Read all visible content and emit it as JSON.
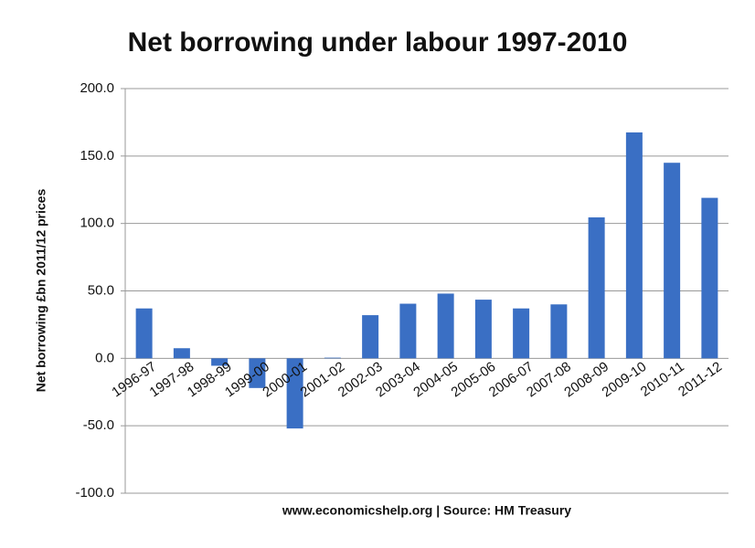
{
  "chart_data": {
    "type": "bar",
    "title": "Net borrowing under labour 1997-2010",
    "y_label": "Net borrowing £bn 2011/12 prices",
    "x_label": "www.economicshelp.org | Source: HM Treasury",
    "categories": [
      "1996-97",
      "1997-98",
      "1998-99",
      "1999-00",
      "2000-01",
      "2001-02",
      "2002-03",
      "2003-04",
      "2004-05",
      "2005-06",
      "2006-07",
      "2007-08",
      "2008-09",
      "2009-10",
      "2010-11",
      "2011-12"
    ],
    "values": [
      37,
      7.5,
      -5.5,
      -22,
      -52,
      0.5,
      32,
      40.5,
      48,
      43.5,
      37,
      40,
      104.5,
      167.5,
      145,
      119
    ],
    "color": "#3a6fc4",
    "ylim": [
      -100,
      200
    ],
    "yticks": [
      {
        "value": -100,
        "label": "-100.0"
      },
      {
        "value": -50,
        "label": "-50.0"
      },
      {
        "value": 0,
        "label": "0.0"
      },
      {
        "value": 50,
        "label": "50.0"
      },
      {
        "value": 100,
        "label": "100.0"
      },
      {
        "value": 150,
        "label": "150.0"
      },
      {
        "value": 200,
        "label": "200.0"
      }
    ],
    "grid": true
  }
}
